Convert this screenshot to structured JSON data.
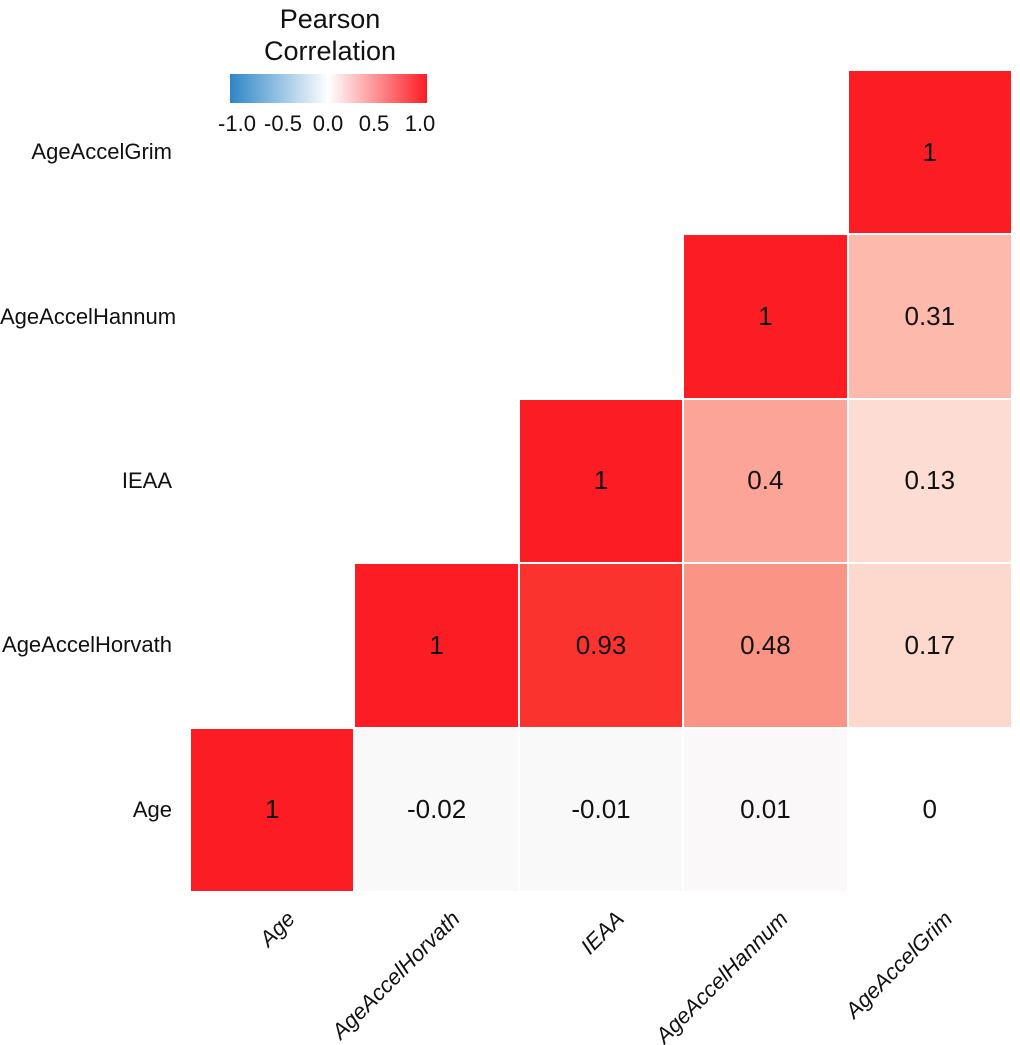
{
  "legend": {
    "title": "Pearson Correlation",
    "ticks": [
      "-1.0",
      "-0.5",
      "0.0",
      "0.5",
      "1.0"
    ],
    "gradient": {
      "negative_color": "#2E86C6",
      "zero_color": "#FFFFFF",
      "positive_color": "#FB1D23"
    },
    "range": {
      "min": -1.0,
      "max": 1.0
    }
  },
  "chart_data": {
    "type": "heatmap",
    "title": "Pearson Correlation",
    "variables": [
      "Age",
      "AgeAccelHorvath",
      "IEAA",
      "AgeAccelHannum",
      "AgeAccelGrim"
    ],
    "row_order_top_to_bottom": [
      "AgeAccelGrim",
      "AgeAccelHannum",
      "IEAA",
      "AgeAccelHorvath",
      "Age"
    ],
    "col_order_left_to_right": [
      "Age",
      "AgeAccelHorvath",
      "IEAA",
      "AgeAccelHannum",
      "AgeAccelGrim"
    ],
    "shape": "upper-triangle",
    "cells": [
      {
        "row": "AgeAccelGrim",
        "col": "AgeAccelGrim",
        "row_idx": 0,
        "col_idx": 4,
        "value": 1,
        "label": "1",
        "color": "#FB1D23"
      },
      {
        "row": "AgeAccelHannum",
        "col": "AgeAccelHannum",
        "row_idx": 1,
        "col_idx": 3,
        "value": 1,
        "label": "1",
        "color": "#FB1D23"
      },
      {
        "row": "AgeAccelHannum",
        "col": "AgeAccelGrim",
        "row_idx": 1,
        "col_idx": 4,
        "value": 0.31,
        "label": "0.31",
        "color": "#FDB9AC"
      },
      {
        "row": "IEAA",
        "col": "IEAA",
        "row_idx": 2,
        "col_idx": 2,
        "value": 1,
        "label": "1",
        "color": "#FB1D23"
      },
      {
        "row": "IEAA",
        "col": "AgeAccelHannum",
        "row_idx": 2,
        "col_idx": 3,
        "value": 0.4,
        "label": "0.4",
        "color": "#FCA497"
      },
      {
        "row": "IEAA",
        "col": "AgeAccelGrim",
        "row_idx": 2,
        "col_idx": 4,
        "value": 0.13,
        "label": "0.13",
        "color": "#FDDCD3"
      },
      {
        "row": "AgeAccelHorvath",
        "col": "AgeAccelHorvath",
        "row_idx": 3,
        "col_idx": 1,
        "value": 1,
        "label": "1",
        "color": "#FB1D23"
      },
      {
        "row": "AgeAccelHorvath",
        "col": "IEAA",
        "row_idx": 3,
        "col_idx": 2,
        "value": 0.93,
        "label": "0.93",
        "color": "#FB332F"
      },
      {
        "row": "AgeAccelHorvath",
        "col": "AgeAccelHannum",
        "row_idx": 3,
        "col_idx": 3,
        "value": 0.48,
        "label": "0.48",
        "color": "#FA9585"
      },
      {
        "row": "AgeAccelHorvath",
        "col": "AgeAccelGrim",
        "row_idx": 3,
        "col_idx": 4,
        "value": 0.17,
        "label": "0.17",
        "color": "#FCD8CD"
      },
      {
        "row": "Age",
        "col": "Age",
        "row_idx": 4,
        "col_idx": 0,
        "value": 1,
        "label": "1",
        "color": "#FB1D23"
      },
      {
        "row": "Age",
        "col": "AgeAccelHorvath",
        "row_idx": 4,
        "col_idx": 1,
        "value": -0.02,
        "label": "-0.02",
        "color": "#FAF9F9"
      },
      {
        "row": "Age",
        "col": "IEAA",
        "row_idx": 4,
        "col_idx": 2,
        "value": -0.01,
        "label": "-0.01",
        "color": "#FAF9F9"
      },
      {
        "row": "Age",
        "col": "AgeAccelHannum",
        "row_idx": 4,
        "col_idx": 3,
        "value": 0.01,
        "label": "0.01",
        "color": "#FAF8F8"
      },
      {
        "row": "Age",
        "col": "AgeAccelGrim",
        "row_idx": 4,
        "col_idx": 4,
        "value": 0,
        "label": "0",
        "color": "#FFFFFF"
      }
    ]
  }
}
